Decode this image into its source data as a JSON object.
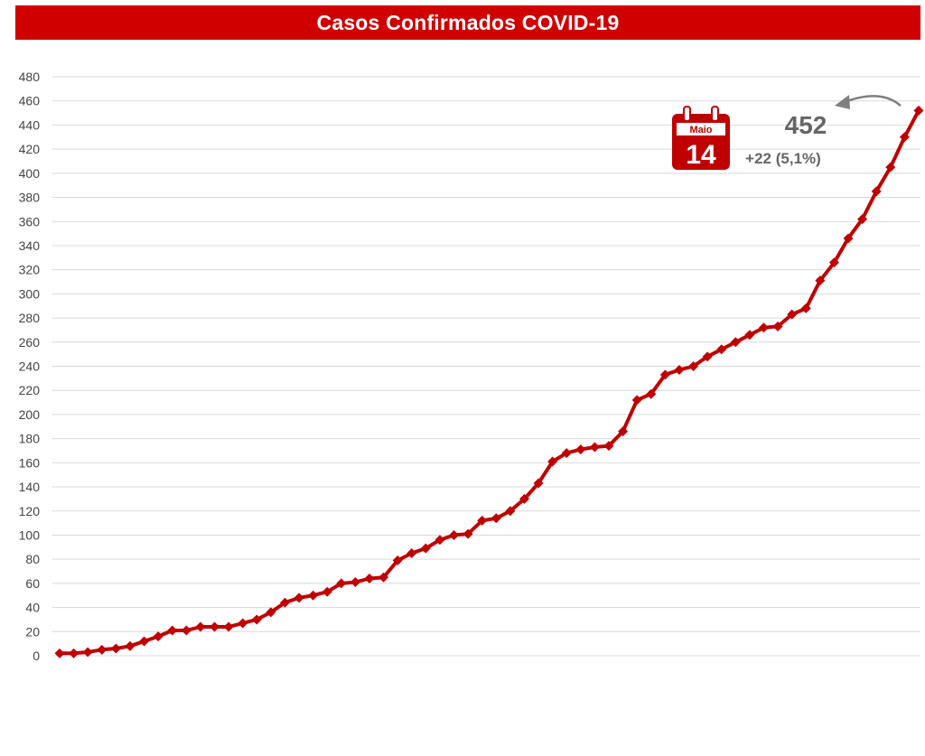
{
  "colors": {
    "accent": "#d00000",
    "line": "#c00000",
    "grid": "#d9d9d9",
    "annotation_text": "#666666"
  },
  "chart_data": {
    "type": "line",
    "title": "Casos Confirmados COVID-19",
    "xlabel": "",
    "ylabel": "",
    "ylim": [
      0,
      480
    ],
    "y_ticks": [
      0,
      20,
      40,
      60,
      80,
      100,
      120,
      140,
      160,
      180,
      200,
      220,
      240,
      260,
      280,
      300,
      320,
      340,
      360,
      380,
      400,
      420,
      440,
      460,
      480
    ],
    "grid": true,
    "x_tick_labels": false,
    "series": [
      {
        "values": [
          2,
          2,
          3,
          5,
          6,
          8,
          12,
          16,
          21,
          21,
          24,
          24,
          24,
          27,
          30,
          36,
          44,
          48,
          50,
          53,
          60,
          61,
          64,
          65,
          79,
          85,
          89,
          96,
          100,
          101,
          112,
          114,
          120,
          130,
          143,
          161,
          168,
          171,
          173,
          174,
          186,
          212,
          217,
          233,
          237,
          240,
          248,
          254,
          260,
          266,
          272,
          273,
          283,
          288,
          311,
          326,
          346,
          362,
          385,
          405,
          430,
          452
        ]
      }
    ],
    "annotation": {
      "calendar_icon": "calendar-icon",
      "month": "Maio",
      "day": "14",
      "value": "452",
      "delta": "+22 (5,1%)",
      "arrow_icon": "curved-arrow-left-icon"
    }
  }
}
